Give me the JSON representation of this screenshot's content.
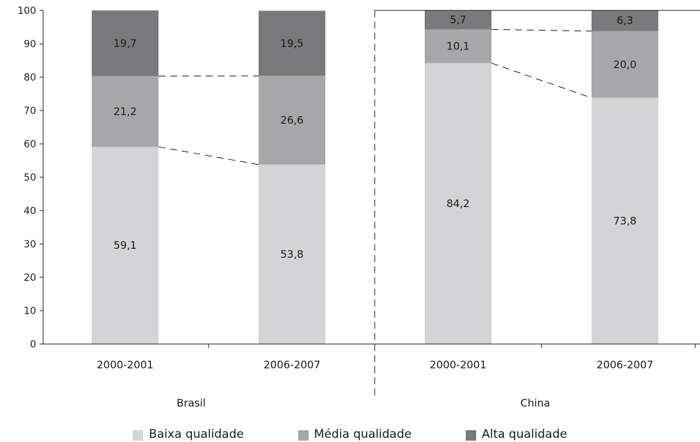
{
  "chart_data": {
    "type": "bar",
    "stacked": true,
    "ylim": [
      0,
      100
    ],
    "yticks": [
      0,
      10,
      20,
      30,
      40,
      50,
      60,
      70,
      80,
      90,
      100
    ],
    "groups": [
      {
        "name": "Brasil",
        "categories": [
          "2000-2001",
          "2006-2007"
        ]
      },
      {
        "name": "China",
        "categories": [
          "2000-2001",
          "2006-2007"
        ]
      }
    ],
    "categories": [
      "2000-2001",
      "2006-2007",
      "2000-2001",
      "2006-2007"
    ],
    "series": [
      {
        "name": "Baixa qualidade",
        "color": "#d4d4d6",
        "values": [
          59.1,
          53.8,
          84.2,
          73.8
        ],
        "labels": [
          "59,1",
          "53,8",
          "84,2",
          "73,8"
        ]
      },
      {
        "name": "Média qualidade",
        "color": "#a7a7a9",
        "values": [
          21.2,
          26.6,
          10.1,
          20.0
        ],
        "labels": [
          "21,2",
          "26,6",
          "10,1",
          "20,0"
        ]
      },
      {
        "name": "Alta qualidade",
        "color": "#7a7a7c",
        "values": [
          19.7,
          19.5,
          5.7,
          6.3
        ],
        "labels": [
          "19,7",
          "19,5",
          "5,7",
          "6,3"
        ]
      }
    ],
    "connectors": "dashed",
    "legend_position": "bottom"
  }
}
